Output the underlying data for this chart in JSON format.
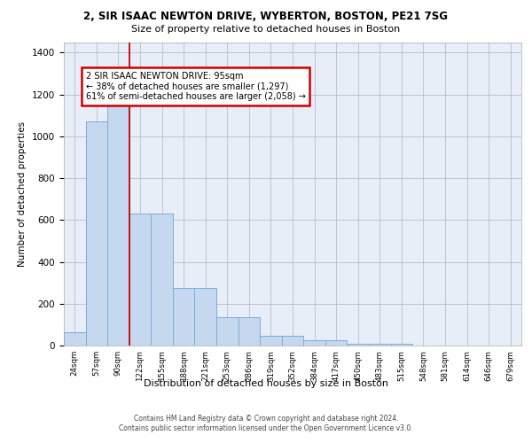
{
  "title1": "2, SIR ISAAC NEWTON DRIVE, WYBERTON, BOSTON, PE21 7SG",
  "title2": "Size of property relative to detached houses in Boston",
  "xlabel": "Distribution of detached houses by size in Boston",
  "ylabel": "Number of detached properties",
  "categories": [
    "24sqm",
    "57sqm",
    "90sqm",
    "122sqm",
    "155sqm",
    "188sqm",
    "221sqm",
    "253sqm",
    "286sqm",
    "319sqm",
    "352sqm",
    "384sqm",
    "417sqm",
    "450sqm",
    "483sqm",
    "515sqm",
    "548sqm",
    "581sqm",
    "614sqm",
    "646sqm",
    "679sqm"
  ],
  "values": [
    65,
    1070,
    1160,
    630,
    630,
    275,
    275,
    135,
    135,
    45,
    45,
    25,
    25,
    10,
    10,
    10,
    0,
    0,
    0,
    0,
    0
  ],
  "bar_color": "#c5d8f0",
  "bar_edge_color": "#7aaed4",
  "annotation_text": "2 SIR ISAAC NEWTON DRIVE: 95sqm\n← 38% of detached houses are smaller (1,297)\n61% of semi-detached houses are larger (2,058) →",
  "annotation_box_color": "#ffffff",
  "annotation_box_edge_color": "#cc0000",
  "red_line_x": 2.5,
  "footer": "Contains HM Land Registry data © Crown copyright and database right 2024.\nContains public sector information licensed under the Open Government Licence v3.0.",
  "ylim": [
    0,
    1450
  ],
  "background_color": "#e8eef8"
}
